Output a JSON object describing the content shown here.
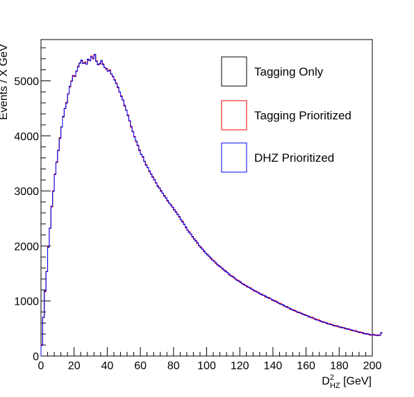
{
  "chart_data": {
    "type": "histogram-step",
    "xlabel": "D",
    "xlabel_sup": "2",
    "xlabel_sub": "HZ",
    "xlabel_unit": " [GeV]",
    "ylabel": "Events / X GeV",
    "xlim": [
      0,
      200
    ],
    "ylim": [
      0,
      5750
    ],
    "x_ticks": [
      0,
      20,
      40,
      60,
      80,
      100,
      120,
      140,
      160,
      180,
      200
    ],
    "y_ticks": [
      0,
      1000,
      2000,
      3000,
      4000,
      5000
    ],
    "grid": false,
    "legend_position": "top-right",
    "bin_width": 1,
    "series": [
      {
        "name": "Tagging Only",
        "color": "#000000",
        "values": [
          200,
          700,
          1180,
          1540,
          1980,
          2320,
          2720,
          3000,
          3300,
          3520,
          3740,
          3960,
          4160,
          4350,
          4500,
          4600,
          4760,
          4900,
          5000,
          5090,
          5080,
          5180,
          5260,
          5320,
          5370,
          5320,
          5330,
          5300,
          5390,
          5370,
          5440,
          5400,
          5480,
          5360,
          5290,
          5310,
          5370,
          5300,
          5240,
          5220,
          5180,
          5190,
          5120,
          5080,
          5020,
          4950,
          4880,
          4800,
          4720,
          4650,
          4550,
          4470,
          4370,
          4270,
          4170,
          4080,
          3980,
          3900,
          3830,
          3740,
          3660,
          3620,
          3540,
          3470,
          3420,
          3360,
          3310,
          3250,
          3200,
          3150,
          3090,
          3050,
          3000,
          2960,
          2910,
          2870,
          2820,
          2780,
          2740,
          2700,
          2660,
          2620,
          2570,
          2530,
          2480,
          2440,
          2390,
          2340,
          2290,
          2250,
          2210,
          2170,
          2130,
          2090,
          2050,
          2010,
          1975,
          1940,
          1905,
          1870,
          1840,
          1810,
          1780,
          1750,
          1720,
          1690,
          1665,
          1640,
          1615,
          1590,
          1565,
          1540,
          1515,
          1490,
          1465,
          1445,
          1425,
          1400,
          1380,
          1360,
          1340,
          1320,
          1300,
          1280,
          1265,
          1250,
          1230,
          1210,
          1195,
          1180,
          1160,
          1145,
          1130,
          1115,
          1100,
          1085,
          1070,
          1055,
          1040,
          1025,
          1010,
          995,
          980,
          965,
          950,
          935,
          920,
          905,
          890,
          875,
          860,
          845,
          830,
          818,
          806,
          794,
          782,
          770,
          758,
          746,
          734,
          722,
          710,
          698,
          686,
          674,
          662,
          650,
          638,
          628,
          618,
          608,
          598,
          588,
          578,
          568,
          560,
          552,
          544,
          536,
          528,
          520,
          512,
          504,
          496,
          488,
          480,
          472,
          464,
          456,
          448,
          440,
          432,
          424,
          416,
          408,
          402,
          396,
          390,
          386,
          384,
          382,
          380,
          378,
          376,
          420
        ]
      },
      {
        "name": "Tagging Prioritized",
        "color": "#ff0000",
        "offset": 12
      },
      {
        "name": "DHZ Prioritized",
        "color": "#0000ff",
        "offset": -8
      }
    ]
  }
}
